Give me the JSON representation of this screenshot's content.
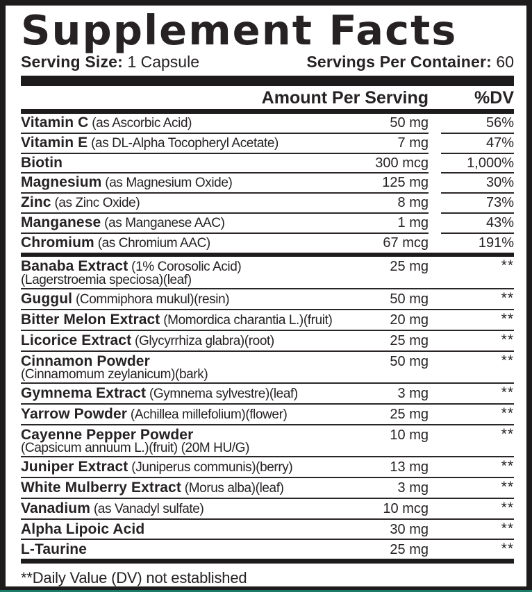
{
  "title": "Supplement Facts",
  "serving": {
    "size_label": "Serving Size:",
    "size_value": "1 Capsule",
    "container_label": "Servings Per Container:",
    "container_value": "60"
  },
  "columns": {
    "amount_header": "Amount Per Serving",
    "dv_header": "%DV"
  },
  "sections": [
    {
      "name": "vitamins-minerals",
      "rows": [
        {
          "name": "Vitamin C",
          "detail": "(as Ascorbic Acid)",
          "amount": "50 mg",
          "dv": "56%"
        },
        {
          "name": "Vitamin E",
          "detail": "(as DL-Alpha Tocopheryl Acetate)",
          "amount": "7 mg",
          "dv": "47%"
        },
        {
          "name": "Biotin",
          "detail": "",
          "amount": "300 mcg",
          "dv": "1,000%"
        },
        {
          "name": "Magnesium",
          "detail": "(as Magnesium Oxide)",
          "amount": "125 mg",
          "dv": "30%"
        },
        {
          "name": "Zinc",
          "detail": "(as Zinc Oxide)",
          "amount": "8 mg",
          "dv": "73%"
        },
        {
          "name": "Manganese",
          "detail": "(as Manganese AAC)",
          "amount": "1 mg",
          "dv": "43%"
        },
        {
          "name": "Chromium",
          "detail": "(as Chromium AAC)",
          "amount": "67 mcg",
          "dv": "191%"
        }
      ]
    },
    {
      "name": "botanicals-others",
      "rows": [
        {
          "name": "Banaba Extract",
          "detail": "(1% Corosolic Acid)",
          "sub": "(Lagerstroemia speciosa)(leaf)",
          "amount": "25 mg",
          "dv": "**"
        },
        {
          "name": "Guggul",
          "detail": "(Commiphora mukul)(resin)",
          "amount": "50 mg",
          "dv": "**"
        },
        {
          "name": "Bitter Melon Extract",
          "detail": "(Momordica charantia L.)(fruit)",
          "amount": "20 mg",
          "dv": "**"
        },
        {
          "name": "Licorice Extract",
          "detail": "(Glycyrrhiza glabra)(root)",
          "amount": "25 mg",
          "dv": "**"
        },
        {
          "name": "Cinnamon Powder",
          "detail": "",
          "sub": "(Cinnamomum zeylanicum)(bark)",
          "amount": "50 mg",
          "dv": "**"
        },
        {
          "name": "Gymnema Extract",
          "detail": "(Gymnema sylvestre)(leaf)",
          "amount": "3 mg",
          "dv": "**"
        },
        {
          "name": "Yarrow Powder",
          "detail": "(Achillea millefolium)(flower)",
          "amount": "25 mg",
          "dv": "**"
        },
        {
          "name": "Cayenne Pepper Powder",
          "detail": "",
          "sub": "(Capsicum annuum L.)(fruit) (20M HU/G)",
          "amount": "10 mg",
          "dv": "**"
        },
        {
          "name": "Juniper Extract",
          "detail": "(Juniperus communis)(berry)",
          "amount": "13 mg",
          "dv": "**"
        },
        {
          "name": "White Mulberry Extract",
          "detail": "(Morus alba)(leaf)",
          "amount": "3 mg",
          "dv": "**"
        },
        {
          "name": "Vanadium",
          "detail": "(as Vanadyl sulfate)",
          "amount": "10 mcg",
          "dv": "**"
        },
        {
          "name": "Alpha Lipoic Acid",
          "detail": "",
          "amount": "30 mg",
          "dv": "**"
        },
        {
          "name": "L-Taurine",
          "detail": "",
          "amount": "25 mg",
          "dv": "**"
        }
      ]
    }
  ],
  "footnote": "**Daily Value (DV) not established",
  "colors": {
    "text": "#262223",
    "rule": "#2a2627",
    "bar": "#1d1b1c",
    "background": "#ffffff",
    "bottom_accent": "#1e7d6a"
  }
}
